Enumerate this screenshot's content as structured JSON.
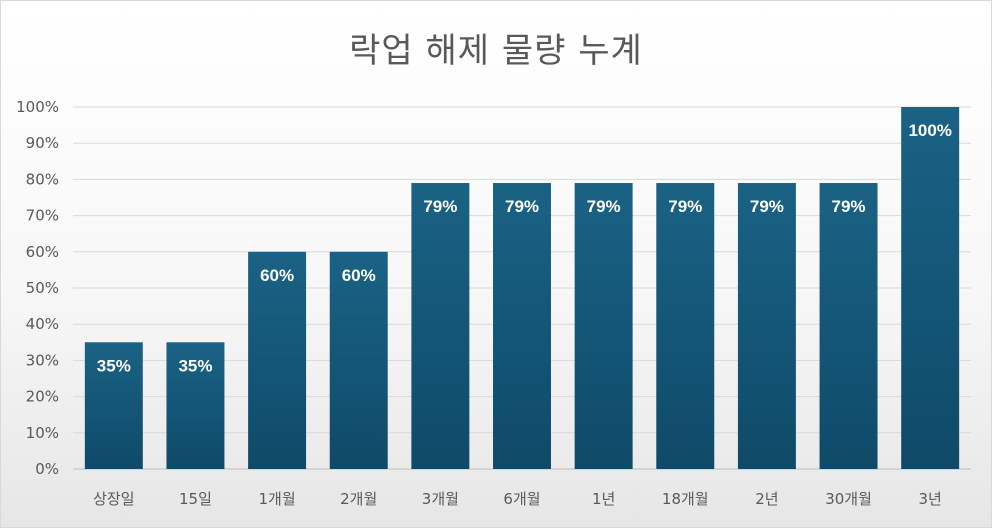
{
  "chart_data": {
    "type": "bar",
    "title": "락업 해제 물량 누계",
    "categories": [
      "상장일",
      "15일",
      "1개월",
      "2개월",
      "3개월",
      "6개월",
      "1년",
      "18개월",
      "2년",
      "30개월",
      "3년"
    ],
    "values": [
      35,
      35,
      60,
      60,
      79,
      79,
      79,
      79,
      79,
      79,
      100
    ],
    "data_labels": [
      "35%",
      "35%",
      "60%",
      "60%",
      "79%",
      "79%",
      "79%",
      "79%",
      "79%",
      "79%",
      "100%"
    ],
    "y_ticks": [
      "0%",
      "10%",
      "20%",
      "30%",
      "40%",
      "50%",
      "60%",
      "70%",
      "80%",
      "90%",
      "100%"
    ],
    "ylim": [
      0,
      100
    ],
    "xlabel": "",
    "ylabel": "",
    "grid": true,
    "legend": "none",
    "bar_color": "#1a5f80",
    "bar_color_dark": "#0f4460"
  }
}
